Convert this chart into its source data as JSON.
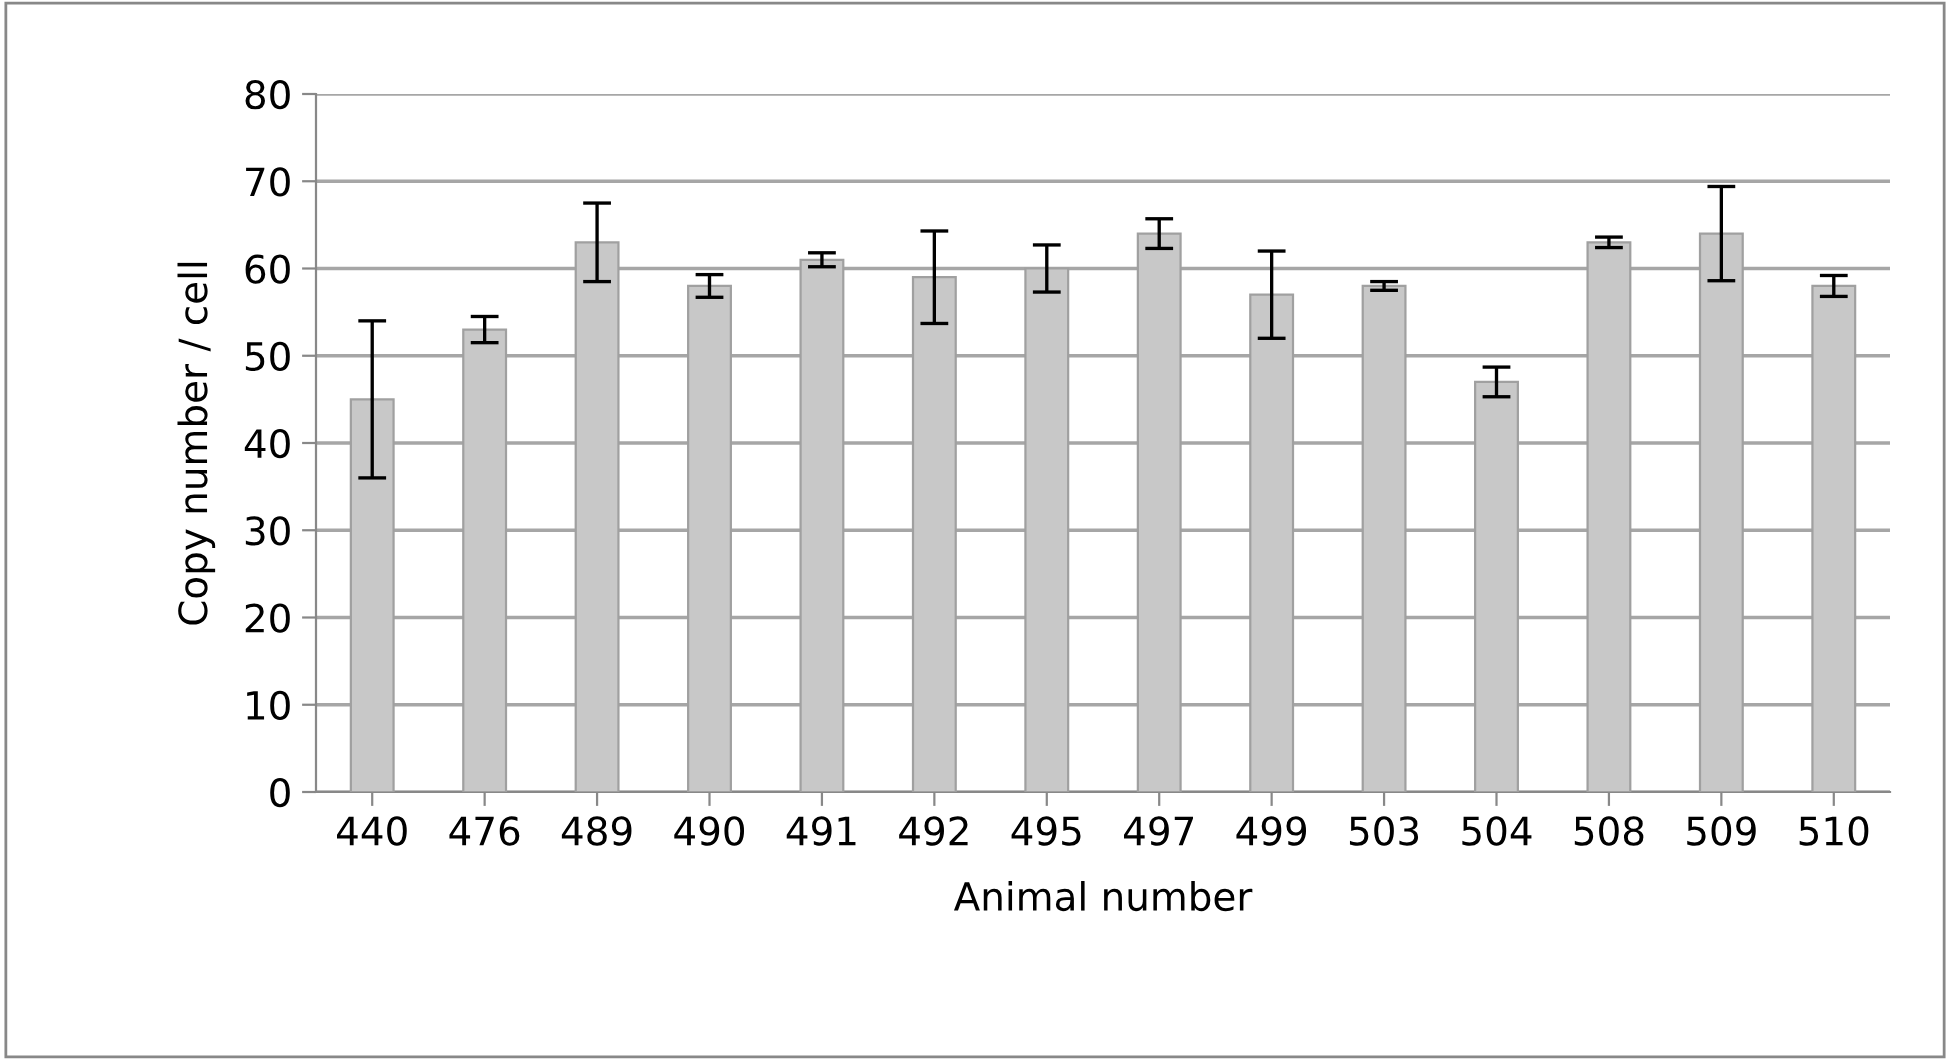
{
  "chart_data": {
    "type": "bar",
    "xlabel": "Animal number",
    "ylabel": "Copy number / cell",
    "categories": [
      "440",
      "476",
      "489",
      "490",
      "491",
      "492",
      "495",
      "497",
      "499",
      "503",
      "504",
      "508",
      "509",
      "510"
    ],
    "values": [
      45,
      53,
      63,
      58,
      61,
      59,
      60,
      64,
      57,
      58,
      47,
      63,
      64,
      58
    ],
    "errors": [
      9,
      1.5,
      4.5,
      1.3,
      0.8,
      5.3,
      2.7,
      1.7,
      5,
      0.5,
      1.7,
      0.6,
      5.4,
      1.2
    ],
    "color": "#c8c8c8",
    "ylim": [
      0,
      80
    ],
    "yticks": [
      0,
      10,
      20,
      30,
      40,
      50,
      60,
      70,
      80
    ],
    "grid": "y"
  }
}
